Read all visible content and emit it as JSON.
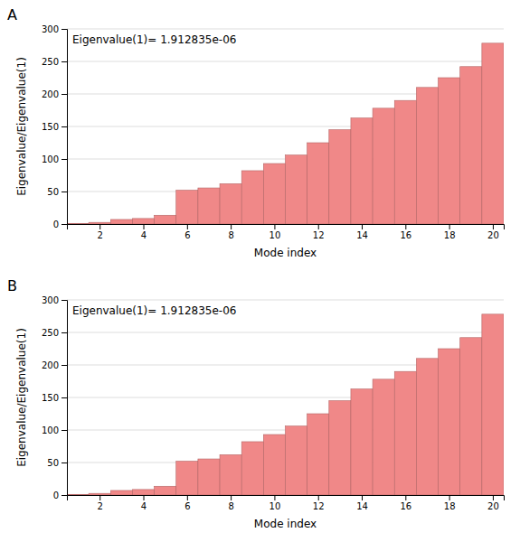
{
  "chart_data": [
    {
      "type": "bar",
      "title": "A",
      "annotation": "Eigenvalue(1)= 1.912835e-06",
      "x_label": "Mode index",
      "y_label": "Eigenvalue/Eigenvalue(1)",
      "x": [
        1,
        2,
        3,
        4,
        5,
        6,
        7,
        8,
        9,
        10,
        11,
        12,
        13,
        14,
        15,
        16,
        17,
        18,
        19,
        20
      ],
      "values": [
        1.0,
        2.5,
        7.0,
        8.5,
        13.5,
        52.0,
        55.5,
        62.0,
        82.0,
        93.0,
        106.0,
        125.0,
        145.0,
        163.0,
        178.0,
        190.0,
        210.0,
        225.0,
        242.0,
        278.0
      ],
      "color": "#f08888",
      "xlim": [
        0.5,
        20.5
      ],
      "xticks": [
        2,
        4,
        6,
        8,
        10,
        12,
        14,
        16,
        18,
        20
      ],
      "ylim": [
        0,
        300
      ],
      "yticks": [
        0,
        50,
        100,
        150,
        200,
        250,
        300
      ],
      "grid": true
    },
    {
      "type": "bar",
      "title": "B",
      "annotation": "Eigenvalue(1)= 1.912835e-06",
      "x_label": "Mode index",
      "y_label": "Eigenvalue/Eigenvalue(1)",
      "x": [
        1,
        2,
        3,
        4,
        5,
        6,
        7,
        8,
        9,
        10,
        11,
        12,
        13,
        14,
        15,
        16,
        17,
        18,
        19,
        20
      ],
      "values": [
        1.0,
        2.5,
        7.0,
        8.5,
        13.5,
        52.0,
        55.5,
        62.0,
        82.0,
        93.0,
        106.0,
        125.0,
        145.0,
        163.0,
        178.0,
        190.0,
        210.0,
        225.0,
        242.0,
        278.0
      ],
      "color": "#f08888",
      "xlim": [
        0.5,
        20.5
      ],
      "xticks": [
        2,
        4,
        6,
        8,
        10,
        12,
        14,
        16,
        18,
        20
      ],
      "ylim": [
        0,
        300
      ],
      "yticks": [
        0,
        50,
        100,
        150,
        200,
        250,
        300
      ],
      "grid": true
    }
  ]
}
